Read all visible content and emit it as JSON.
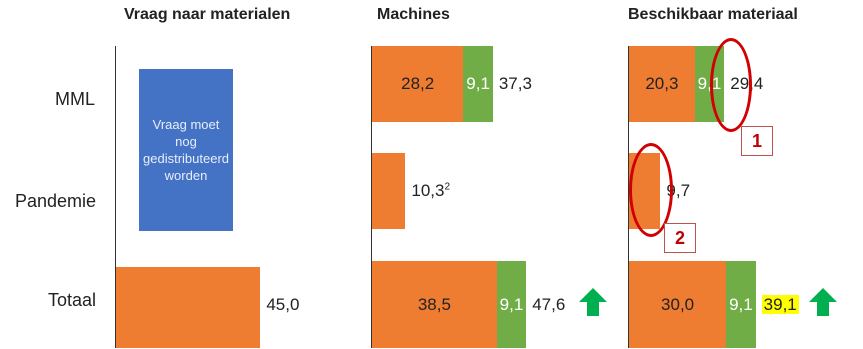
{
  "chart_data": {
    "type": "bar",
    "orientation": "horizontal-stacked",
    "categories": [
      "MML",
      "Pandemie",
      "Totaal"
    ],
    "panels": [
      {
        "title": "Vraag naar materialen",
        "note": "Vraag moet nog gedistributeerd worden",
        "totaal_value": 45.0,
        "totaal_label": "45,0"
      },
      {
        "title": "Machines",
        "series": [
          {
            "values": [
              28.2,
              10.3,
              38.5
            ],
            "labels": [
              "28,2",
              "",
              "38,5"
            ],
            "color": "#ee7d31"
          },
          {
            "values": [
              9.1,
              0,
              9.1
            ],
            "labels": [
              "9,1",
              "",
              "9,1"
            ],
            "color": "#70ad47"
          }
        ],
        "totals": [
          "37,3",
          "10,3",
          "47,6"
        ],
        "pandemie_superscript": "2",
        "arrow": "up-green"
      },
      {
        "title": "Beschikbaar materiaal",
        "series": [
          {
            "values": [
              20.3,
              9.7,
              30.0
            ],
            "labels": [
              "20,3",
              "",
              "30,0"
            ],
            "color": "#ee7d31"
          },
          {
            "values": [
              9.1,
              0,
              9.1
            ],
            "labels": [
              "9,1",
              "",
              "9,1"
            ],
            "color": "#70ad47"
          }
        ],
        "totals": [
          "29,4",
          "9,7",
          "39,1"
        ],
        "highlighted_total": "39,1",
        "arrow": "up-green",
        "annotations": [
          "1",
          "2"
        ]
      }
    ],
    "colors": {
      "orange": "#ee7d31",
      "green": "#70ad47",
      "blue": "#4472c4",
      "annotation_red": "#d20000",
      "highlight": "#ffff00",
      "arrow_green": "#00b050"
    }
  }
}
